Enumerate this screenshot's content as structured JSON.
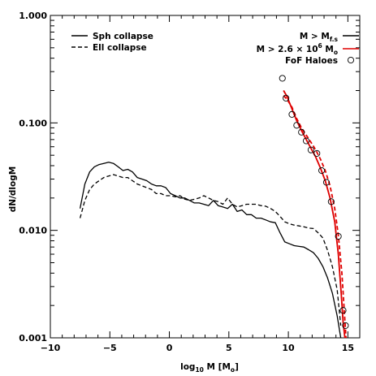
{
  "chart_data": {
    "type": "line",
    "title": "",
    "xlabel": "log10 M [Mo]",
    "ylabel": "dN/dlogM",
    "xlim": [
      -10,
      16
    ],
    "ylim": [
      0.001,
      1.0
    ],
    "yscale": "log",
    "grid": false,
    "legend_left_placement": "top-left",
    "legend_right_placement": "top-right",
    "x_tick_labels": [
      "−10",
      "−5",
      "0",
      "5",
      "10",
      "15"
    ],
    "x_tick_values": [
      -10,
      -5,
      0,
      5,
      10,
      15
    ],
    "y_tick_labels": [
      "0.001",
      "0.010",
      "0.100",
      "1.000"
    ],
    "y_tick_values": [
      0.001,
      0.01,
      0.1,
      1.0
    ],
    "series": [
      {
        "name": "Sph collapse",
        "color": "#000000",
        "dash": "solid",
        "x": [
          -7.5,
          -7.1,
          -6.7,
          -6.3,
          -5.9,
          -5.5,
          -5.1,
          -4.7,
          -4.3,
          -3.9,
          -3.5,
          -3.1,
          -2.7,
          -2.3,
          -1.9,
          -1.5,
          -1.1,
          -0.7,
          -0.3,
          0.1,
          0.5,
          0.9,
          1.3,
          1.7,
          2.1,
          2.5,
          2.9,
          3.3,
          3.7,
          4.1,
          4.5,
          4.9,
          5.3,
          5.7,
          6.1,
          6.5,
          6.9,
          7.3,
          7.7,
          8.1,
          8.5,
          8.9,
          9.3,
          9.7,
          10.1,
          10.5,
          10.9,
          11.3,
          11.7,
          12.1,
          12.5,
          12.9,
          13.3,
          13.7,
          14.1,
          14.4
        ],
        "y": [
          0.016,
          0.027,
          0.035,
          0.039,
          0.041,
          0.042,
          0.043,
          0.042,
          0.039,
          0.036,
          0.037,
          0.035,
          0.031,
          0.03,
          0.029,
          0.027,
          0.026,
          0.026,
          0.025,
          0.022,
          0.021,
          0.02,
          0.02,
          0.019,
          0.018,
          0.018,
          0.0175,
          0.017,
          0.019,
          0.017,
          0.0165,
          0.016,
          0.0175,
          0.015,
          0.0155,
          0.014,
          0.014,
          0.013,
          0.013,
          0.0125,
          0.012,
          0.0118,
          0.0095,
          0.0078,
          0.0075,
          0.0072,
          0.0071,
          0.007,
          0.0066,
          0.0062,
          0.0055,
          0.0046,
          0.0036,
          0.0026,
          0.0016,
          0.001
        ]
      },
      {
        "name": "Ell collapse",
        "color": "#000000",
        "dash": "dashed",
        "x": [
          -7.5,
          -7.1,
          -6.7,
          -6.3,
          -5.9,
          -5.5,
          -5.1,
          -4.7,
          -4.3,
          -3.9,
          -3.5,
          -3.1,
          -2.7,
          -2.3,
          -1.9,
          -1.5,
          -1.1,
          -0.7,
          -0.3,
          0.1,
          0.5,
          0.9,
          1.3,
          1.7,
          2.1,
          2.5,
          2.9,
          3.3,
          3.7,
          4.1,
          4.5,
          4.9,
          5.3,
          5.7,
          6.1,
          6.5,
          6.9,
          7.3,
          7.7,
          8.1,
          8.5,
          8.9,
          9.3,
          9.7,
          10.1,
          10.5,
          10.9,
          11.3,
          11.7,
          12.1,
          12.5,
          12.9,
          13.3,
          13.7,
          14.1,
          14.4
        ],
        "y": [
          0.013,
          0.019,
          0.024,
          0.027,
          0.029,
          0.031,
          0.032,
          0.033,
          0.032,
          0.031,
          0.031,
          0.029,
          0.027,
          0.026,
          0.025,
          0.024,
          0.022,
          0.022,
          0.021,
          0.021,
          0.0205,
          0.021,
          0.0195,
          0.019,
          0.0195,
          0.02,
          0.021,
          0.02,
          0.019,
          0.0185,
          0.0175,
          0.02,
          0.0175,
          0.0165,
          0.017,
          0.0175,
          0.0175,
          0.0175,
          0.017,
          0.0168,
          0.016,
          0.015,
          0.0135,
          0.012,
          0.0115,
          0.0112,
          0.011,
          0.0108,
          0.0105,
          0.0104,
          0.0095,
          0.0085,
          0.0065,
          0.0046,
          0.0028,
          0.0013
        ]
      },
      {
        "name": "M > Mf.s",
        "color": "#000000",
        "dash": "solid",
        "x": [
          9.6,
          9.9,
          10.3,
          10.7,
          11.1,
          11.5,
          11.9,
          12.3,
          12.7,
          13.1,
          13.5,
          13.9,
          14.2,
          14.45,
          14.6,
          14.75
        ],
        "y": [
          0.2,
          0.175,
          0.135,
          0.105,
          0.085,
          0.07,
          0.058,
          0.048,
          0.038,
          0.029,
          0.02,
          0.012,
          0.006,
          0.0025,
          0.0014,
          0.001
        ]
      },
      {
        "name": "M > 2.6 × 10^6 Mo",
        "color": "#e00000",
        "dash": "solid",
        "x": [
          9.6,
          9.9,
          10.3,
          10.7,
          11.1,
          11.5,
          11.9,
          12.3,
          12.7,
          13.1,
          13.5,
          13.9,
          14.2,
          14.45,
          14.6,
          14.75
        ],
        "y": [
          0.2,
          0.175,
          0.135,
          0.105,
          0.085,
          0.07,
          0.058,
          0.048,
          0.038,
          0.029,
          0.02,
          0.012,
          0.006,
          0.0025,
          0.0014,
          0.001
        ]
      },
      {
        "name": "",
        "color": "#e00000",
        "dash": "dashed",
        "x": [
          9.6,
          9.9,
          10.3,
          10.7,
          11.1,
          11.5,
          11.9,
          12.3,
          12.7,
          13.1,
          13.5,
          13.9,
          14.2,
          14.5,
          14.7,
          14.85
        ],
        "y": [
          0.18,
          0.165,
          0.14,
          0.11,
          0.09,
          0.077,
          0.066,
          0.056,
          0.046,
          0.036,
          0.026,
          0.016,
          0.009,
          0.004,
          0.0018,
          0.001
        ]
      }
    ],
    "scatter": {
      "name": "FoF Haloes",
      "marker": "open-circle",
      "x": [
        9.5,
        9.8,
        10.3,
        10.7,
        11.1,
        11.5,
        11.9,
        12.4,
        12.8,
        13.2,
        13.6,
        14.2,
        14.6,
        14.8
      ],
      "y": [
        0.26,
        0.17,
        0.12,
        0.095,
        0.082,
        0.068,
        0.056,
        0.052,
        0.036,
        0.028,
        0.0185,
        0.0088,
        0.0018,
        0.0013
      ]
    },
    "legend_left": {
      "entries": [
        {
          "label": "Sph collapse",
          "dash": "solid"
        },
        {
          "label": "Ell collapse",
          "dash": "dashed"
        }
      ]
    },
    "legend_right": {
      "entry1": {
        "pre": "M > M",
        "sub": "f.s",
        "color": "#000000"
      },
      "entry2": {
        "pre": "M > 2.6 × 10",
        "sup": "6",
        "mid": " M",
        "sub": "o",
        "color": "#e00000"
      },
      "entry3": {
        "label": "FoF Haloes"
      }
    }
  },
  "axis_text": {
    "ylabel": "dN/dlogM",
    "xlabel_pre": "log",
    "xlabel_sub": "10",
    "xlabel_mid": " M [M",
    "xlabel_sub2": "o",
    "xlabel_post": "]"
  }
}
